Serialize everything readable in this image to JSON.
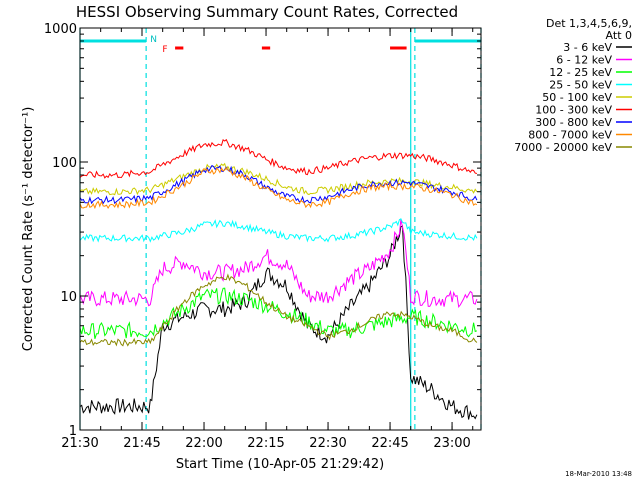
{
  "chart_data": {
    "type": "line",
    "title": "HESSI Observing Summary Count Rates, Corrected",
    "xlabel": "Start Time (10-Apr-05 21:29:42)",
    "ylabel": "Corrected Count Rate (s⁻¹ detector⁻¹)",
    "y_scale": "log",
    "ylim": [
      1,
      1000
    ],
    "xlim": [
      "21:30",
      "23:07"
    ],
    "x_ticks": [
      "21:30",
      "21:45",
      "22:00",
      "22:15",
      "22:30",
      "22:45",
      "23:00"
    ],
    "y_ticks": [
      "1",
      "10",
      "100",
      "1000"
    ],
    "legend_header": [
      "Det 1,3,4,5,6,9,",
      "Att 0"
    ],
    "legend_placement": "right",
    "timestamp": "18-Mar-2010 13:48",
    "flags": {
      "cyan_bars": [
        [
          "21:30",
          "21:46"
        ],
        [
          "22:51",
          "23:07"
        ]
      ],
      "cyan_dashed_lines": [
        "21:46",
        "22:51",
        "23:07"
      ],
      "cyan_solid_lines": [
        "21:30",
        "22:50"
      ],
      "N_label": {
        "text": "N",
        "time": "21:47"
      },
      "F_label": {
        "text": "F",
        "time": "21:48"
      },
      "red_marks": [
        [
          "21:53",
          "21:55"
        ],
        [
          "22:14",
          "22:16"
        ],
        [
          "22:45",
          "22:49"
        ]
      ]
    },
    "series": [
      {
        "name": "3 - 6 keV",
        "color": "#000000",
        "x": [
          "21:30",
          "21:40",
          "21:47",
          "21:50",
          "21:55",
          "22:00",
          "22:05",
          "22:10",
          "22:15",
          "22:20",
          "22:25",
          "22:30",
          "22:35",
          "22:40",
          "22:45",
          "22:48",
          "22:50",
          "22:55",
          "23:00",
          "23:06"
        ],
        "values": [
          1.5,
          1.5,
          1.5,
          6,
          7,
          8,
          8,
          9,
          15,
          12,
          6,
          5,
          8,
          12,
          20,
          35,
          2.5,
          2,
          1.5,
          1.3
        ]
      },
      {
        "name": "6 - 12 keV",
        "color": "#ff00ff",
        "x": [
          "21:30",
          "21:40",
          "21:47",
          "21:50",
          "21:55",
          "22:00",
          "22:05",
          "22:10",
          "22:15",
          "22:20",
          "22:25",
          "22:30",
          "22:35",
          "22:40",
          "22:45",
          "22:48",
          "22:50",
          "22:55",
          "23:00",
          "23:06"
        ],
        "values": [
          9.5,
          9.5,
          9.5,
          16,
          18,
          15,
          15,
          16,
          20,
          17,
          10,
          10,
          13,
          16,
          22,
          35,
          10,
          9.5,
          9.5,
          9.5
        ]
      },
      {
        "name": "12 - 25 keV",
        "color": "#00ff00",
        "x": [
          "21:30",
          "21:40",
          "21:47",
          "21:55",
          "22:00",
          "22:05",
          "22:10",
          "22:15",
          "22:20",
          "22:25",
          "22:30",
          "22:35",
          "22:40",
          "22:45",
          "22:50",
          "22:55",
          "23:00",
          "23:06"
        ],
        "values": [
          5.5,
          5.5,
          5.5,
          8,
          10,
          10,
          9.5,
          8.5,
          7.5,
          6.5,
          5.5,
          5.5,
          6,
          6.5,
          7,
          6.5,
          6,
          5.5
        ]
      },
      {
        "name": "25 - 50 keV",
        "color": "#00ffff",
        "x": [
          "21:30",
          "21:40",
          "21:47",
          "21:55",
          "22:00",
          "22:05",
          "22:10",
          "22:15",
          "22:20",
          "22:25",
          "22:30",
          "22:35",
          "22:40",
          "22:45",
          "22:48",
          "22:50",
          "22:55",
          "23:00",
          "23:06"
        ],
        "values": [
          27,
          27,
          27,
          30,
          34,
          35,
          33,
          30,
          28,
          27,
          27,
          28,
          30,
          33,
          37,
          30,
          29,
          28,
          27
        ]
      },
      {
        "name": "50 - 100 keV",
        "color": "#cccc00",
        "x": [
          "21:30",
          "21:40",
          "21:47",
          "21:55",
          "22:00",
          "22:05",
          "22:10",
          "22:15",
          "22:20",
          "22:25",
          "22:30",
          "22:35",
          "22:40",
          "22:45",
          "22:50",
          "22:55",
          "23:00",
          "23:06"
        ],
        "values": [
          60,
          60,
          62,
          78,
          90,
          92,
          85,
          75,
          65,
          60,
          62,
          66,
          70,
          72,
          72,
          68,
          65,
          60
        ]
      },
      {
        "name": "100 - 300 keV",
        "color": "#ff0000",
        "x": [
          "21:30",
          "21:40",
          "21:47",
          "21:55",
          "22:00",
          "22:05",
          "22:10",
          "22:15",
          "22:20",
          "22:25",
          "22:30",
          "22:35",
          "22:40",
          "22:45",
          "22:50",
          "22:55",
          "23:00",
          "23:06"
        ],
        "values": [
          80,
          80,
          85,
          115,
          135,
          140,
          125,
          105,
          90,
          85,
          90,
          100,
          107,
          112,
          112,
          105,
          95,
          82
        ]
      },
      {
        "name": "300 - 800 keV",
        "color": "#0000ff",
        "x": [
          "21:30",
          "21:40",
          "21:47",
          "21:55",
          "22:00",
          "22:05",
          "22:10",
          "22:15",
          "22:20",
          "22:25",
          "22:30",
          "22:35",
          "22:40",
          "22:45",
          "22:50",
          "22:55",
          "23:00",
          "23:06"
        ],
        "values": [
          52,
          52,
          54,
          72,
          88,
          90,
          80,
          65,
          55,
          52,
          55,
          62,
          68,
          70,
          70,
          65,
          60,
          52
        ]
      },
      {
        "name": "800 - 7000 keV",
        "color": "#ff8800",
        "x": [
          "21:30",
          "21:40",
          "21:47",
          "21:55",
          "22:00",
          "22:05",
          "22:10",
          "22:15",
          "22:20",
          "22:25",
          "22:30",
          "22:35",
          "22:40",
          "22:45",
          "22:50",
          "22:55",
          "23:00",
          "23:06"
        ],
        "values": [
          48,
          48,
          50,
          68,
          85,
          88,
          76,
          62,
          52,
          48,
          50,
          58,
          64,
          66,
          66,
          62,
          57,
          48
        ]
      },
      {
        "name": "7000 - 20000 keV",
        "color": "#888800",
        "x": [
          "21:30",
          "21:40",
          "21:47",
          "21:55",
          "22:00",
          "22:05",
          "22:10",
          "22:15",
          "22:20",
          "22:25",
          "22:30",
          "22:35",
          "22:40",
          "22:45",
          "22:50",
          "22:55",
          "23:00",
          "23:06"
        ],
        "values": [
          4.5,
          4.5,
          4.5,
          9,
          12,
          14,
          12,
          9,
          7,
          6,
          5,
          5.5,
          6.5,
          7.5,
          7,
          6,
          5.5,
          4.5
        ]
      }
    ]
  }
}
